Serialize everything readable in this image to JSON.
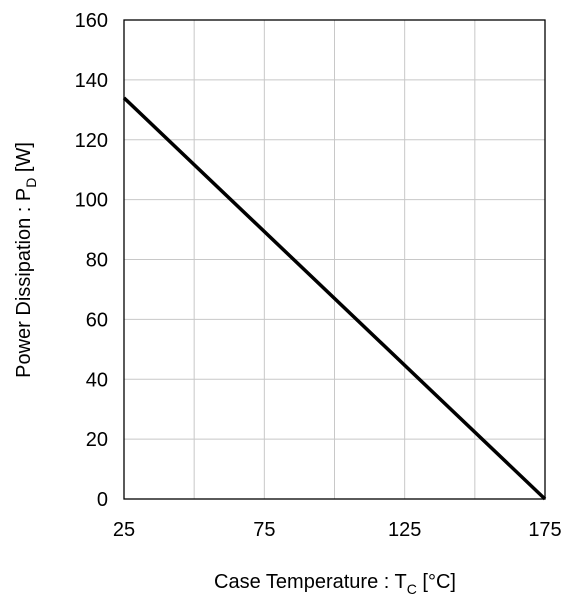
{
  "chart_data": {
    "type": "line",
    "title": "",
    "xlabel": {
      "main": "Case Temperature : T",
      "sub": "C",
      "unit": " [°C]"
    },
    "ylabel": {
      "main": "Power Dissipation  : P",
      "sub": "D",
      "unit": " [W]"
    },
    "xlim": [
      25,
      175
    ],
    "ylim": [
      0,
      160
    ],
    "x_ticks": [
      25,
      75,
      125,
      175
    ],
    "y_ticks": [
      0,
      20,
      40,
      60,
      80,
      100,
      120,
      140,
      160
    ],
    "x_grid": [
      25,
      50,
      75,
      100,
      125,
      150,
      175
    ],
    "y_grid": [
      0,
      20,
      40,
      60,
      80,
      100,
      120,
      140,
      160
    ],
    "grid": true,
    "series": [
      {
        "x": [
          25,
          175
        ],
        "y": [
          134,
          0
        ],
        "color": "#000000"
      }
    ]
  }
}
